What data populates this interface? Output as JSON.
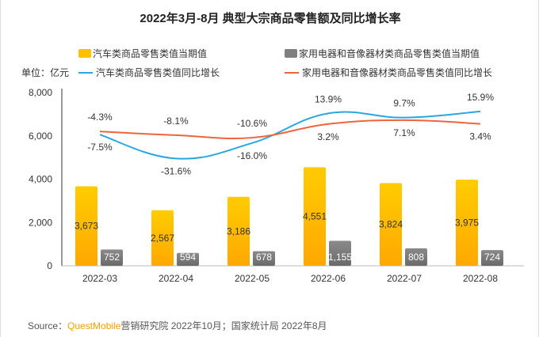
{
  "title": "2022年3月-8月 典型大宗商品零售额及同比增长率",
  "unit_label": "单位：亿元",
  "watermark": "QUEST MOBILE",
  "source": {
    "prefix": "Source：",
    "brand": "QuestMobile",
    "text": "营销研究院 2022年10月；国家统计局 2022年8月"
  },
  "chart_data": {
    "type": "bar+line",
    "title": "2022年3月-8月 典型大宗商品零售额及同比增长率",
    "categories": [
      "2022-03",
      "2022-04",
      "2022-05",
      "2022-06",
      "2022-07",
      "2022-08"
    ],
    "ylim": [
      0,
      8000
    ],
    "yticks": [
      "0",
      "2,000",
      "4,000",
      "6,000",
      "8,000"
    ],
    "ytick_values": [
      0,
      2000,
      4000,
      6000,
      8000
    ],
    "y2lim": [
      -140,
      35
    ],
    "y2_hidden": true,
    "grid": false,
    "legend_placement": "top",
    "bar_series": [
      {
        "name": "汽车类商品零售类值当期值",
        "values": [
          3673,
          2567,
          3186,
          4551,
          3824,
          3975
        ],
        "labels": [
          "3,673",
          "2,567",
          "3,186",
          "4,551",
          "3,824",
          "3,975"
        ],
        "color": "#ffc000"
      },
      {
        "name": "家用电器和音像器材类商品零售类值当期值",
        "values": [
          752,
          594,
          678,
          1155,
          808,
          724
        ],
        "labels": [
          "752",
          "594",
          "678",
          "1,155",
          "808",
          "724"
        ],
        "color": "#7f7f7f"
      }
    ],
    "line_series": [
      {
        "name": "汽车类商品零售类值同比增长",
        "values": [
          -7.5,
          -31.6,
          -16.0,
          13.9,
          9.7,
          15.9
        ],
        "labels": [
          "-7.5%",
          "-31.6%",
          "-16.0%",
          "13.9%",
          "9.7%",
          "15.9%"
        ],
        "color": "#29a8e0"
      },
      {
        "name": "家用电器和音像器材类商品零售类值同比增长",
        "values": [
          -4.3,
          -8.1,
          -10.6,
          3.2,
          7.1,
          3.4
        ],
        "labels": [
          "-4.3%",
          "-8.1%",
          "-10.6%",
          "3.2%",
          "7.1%",
          "3.4%"
        ],
        "color": "#f0643c"
      }
    ]
  }
}
